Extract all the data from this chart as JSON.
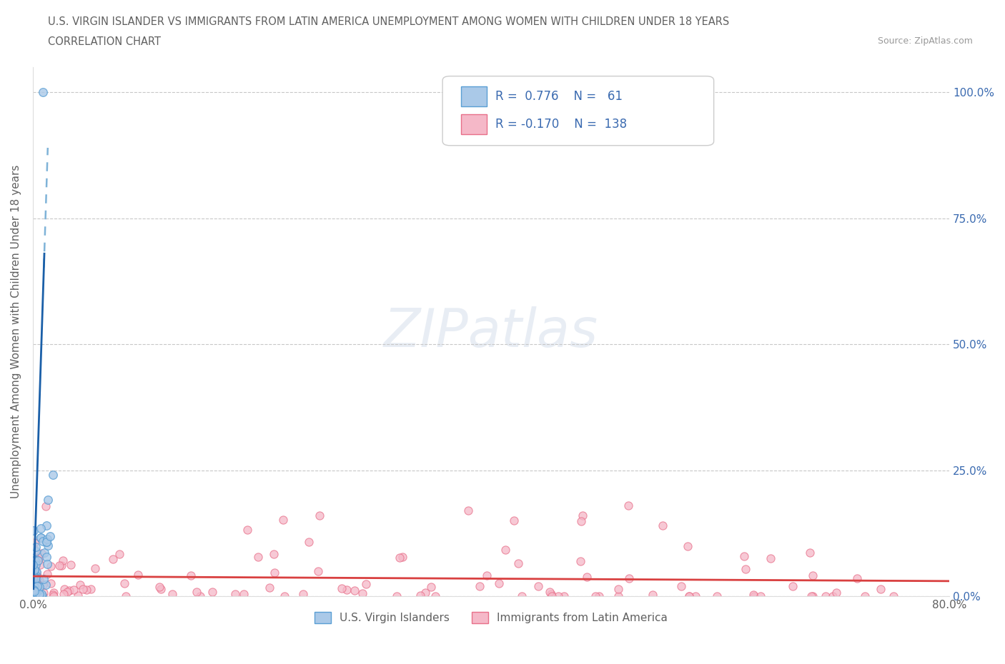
{
  "title_line1": "U.S. VIRGIN ISLANDER VS IMMIGRANTS FROM LATIN AMERICA UNEMPLOYMENT AMONG WOMEN WITH CHILDREN UNDER 18 YEARS",
  "title_line2": "CORRELATION CHART",
  "source": "Source: ZipAtlas.com",
  "ylabel": "Unemployment Among Women with Children Under 18 years",
  "xlim": [
    0.0,
    0.8
  ],
  "ylim": [
    0.0,
    1.05
  ],
  "ytick_positions": [
    0.0,
    0.25,
    0.5,
    0.75,
    1.0
  ],
  "ytick_labels": [
    "0.0%",
    "25.0%",
    "50.0%",
    "75.0%",
    "100.0%"
  ],
  "watermark": "ZIPatlas",
  "blue_scatter_color": "#aac9e8",
  "blue_edge_color": "#5a9fd4",
  "pink_scatter_color": "#f5b8c8",
  "pink_edge_color": "#e8708a",
  "blue_line_color": "#1a5fa8",
  "blue_dash_color": "#7fb3d8",
  "red_line_color": "#d94040",
  "title_color": "#606060",
  "source_color": "#999999",
  "legend_text_color": "#3a6ab0",
  "background_color": "#ffffff",
  "grid_color": "#c8c8c8"
}
